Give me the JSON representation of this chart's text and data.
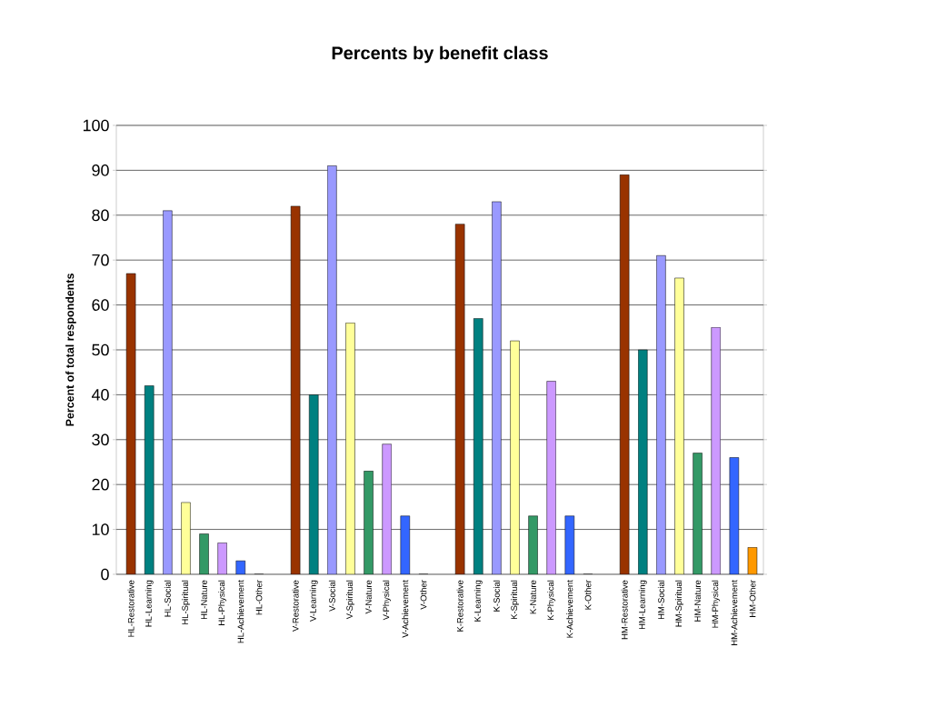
{
  "chart_data": {
    "type": "bar",
    "title": "Percents by benefit class",
    "ylabel": "Percent of total respondents",
    "categories": [
      "HL-Restorative",
      "HL-Learning",
      "HL-Social",
      "HL-Spiritual",
      "HL-Nature",
      "HL-Physical",
      "HL-Achievement",
      "HL-Other",
      null,
      "V-Restorative",
      "V-Learning",
      "V-Social",
      "V-Spiritual",
      "V-Nature",
      "V-Physical",
      "V-Achievement",
      "V-Other",
      null,
      "K-Restorative",
      "K-Learning",
      "K-Social",
      "K-Spiritual",
      "K-Nature",
      "K-Physical",
      "K-Achievement",
      "K-Other",
      null,
      "HM-Restorative",
      "HM-Learning",
      "HM-Social",
      "HM-Spiritual",
      "HM-Nature",
      "HM-Physical",
      "HM-Achievement",
      "HM-Other"
    ],
    "values": [
      67,
      42,
      81,
      16,
      9,
      7,
      3,
      0,
      null,
      82,
      40,
      91,
      56,
      23,
      29,
      13,
      0,
      null,
      78,
      57,
      83,
      52,
      13,
      43,
      13,
      0,
      null,
      89,
      50,
      71,
      66,
      27,
      55,
      26,
      6
    ],
    "colors": [
      "#993300",
      "#008080",
      "#9999ff",
      "#ffff99",
      "#339966",
      "#cc99ff",
      "#3366ff",
      "#ff9900",
      "#ffffff",
      "#993300",
      "#008080",
      "#9999ff",
      "#ffff99",
      "#339966",
      "#cc99ff",
      "#3366ff",
      "#ff9900",
      "#ffffff",
      "#993300",
      "#008080",
      "#9999ff",
      "#ffff99",
      "#339966",
      "#cc99ff",
      "#3366ff",
      "#ff9900",
      "#ffffff",
      "#993300",
      "#008080",
      "#9999ff",
      "#ffff99",
      "#339966",
      "#cc99ff",
      "#3366ff",
      "#ff9900"
    ],
    "ylim": [
      0,
      100
    ],
    "yticks": [
      0,
      10,
      20,
      30,
      40,
      50,
      60,
      70,
      80,
      90,
      100
    ],
    "grid": "y"
  }
}
